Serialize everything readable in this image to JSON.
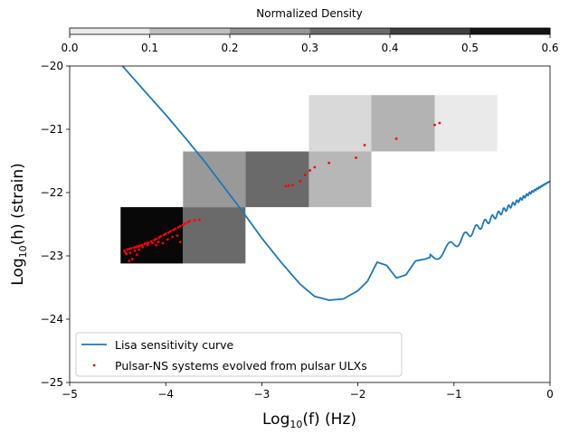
{
  "chart_data": {
    "type": "heatmap",
    "xlabel": "Log10(f) (Hz)",
    "ylabel": "Log10(h) (strain)",
    "xlim": [
      -5,
      0
    ],
    "ylim": [
      -25,
      -20
    ],
    "xticks": [
      -5,
      -4,
      -3,
      -2,
      -1,
      0
    ],
    "xtick_labels": [
      "−5",
      "−4",
      "−3",
      "−2",
      "−1",
      "0"
    ],
    "yticks": [
      -25,
      -24,
      -23,
      -22,
      -21,
      -20
    ],
    "ytick_labels": [
      "−25",
      "−24",
      "−23",
      "−22",
      "−21",
      "−20"
    ],
    "colorbar": {
      "title": "Normalized Density",
      "range": [
        0,
        0.6
      ],
      "ticks": [
        0,
        0.1,
        0.2,
        0.3,
        0.4,
        0.5,
        0.6
      ],
      "tick_labels": [
        "0.0",
        "0.1",
        "0.2",
        "0.3",
        "0.4",
        "0.5",
        "0.6"
      ]
    },
    "heatmap_cells": [
      {
        "x0": -4.47,
        "x1": -3.82,
        "y0": -23.12,
        "y1": -22.23,
        "density": 0.58
      },
      {
        "x0": -3.82,
        "x1": -3.17,
        "y0": -23.12,
        "y1": -22.23,
        "density": 0.35
      },
      {
        "x0": -3.82,
        "x1": -3.17,
        "y0": -22.23,
        "y1": -21.35,
        "density": 0.24
      },
      {
        "x0": -3.17,
        "x1": -2.51,
        "y0": -22.23,
        "y1": -21.35,
        "density": 0.35
      },
      {
        "x0": -2.51,
        "x1": -1.86,
        "y0": -22.23,
        "y1": -21.35,
        "density": 0.17
      },
      {
        "x0": -2.51,
        "x1": -1.86,
        "y0": -21.35,
        "y1": -20.46,
        "density": 0.09
      },
      {
        "x0": -1.86,
        "x1": -1.2,
        "y0": -21.35,
        "y1": -20.46,
        "density": 0.18
      },
      {
        "x0": -1.2,
        "x1": -0.55,
        "y0": -21.35,
        "y1": -20.46,
        "density": 0.05
      }
    ],
    "series": [
      {
        "name": "Lisa sensitivity curve",
        "type": "line",
        "color": "#1f77b4",
        "x": [
          -4.45,
          -4.2,
          -4.0,
          -3.8,
          -3.6,
          -3.4,
          -3.2,
          -3.0,
          -2.8,
          -2.6,
          -2.45,
          -2.3,
          -2.15,
          -2.0,
          -1.9,
          -1.8,
          -1.7,
          -1.6,
          -1.5,
          -1.4,
          -1.3,
          -1.2,
          -1.0,
          -0.8,
          -0.6,
          -0.4,
          -0.2,
          0.0
        ],
        "y": [
          -20.0,
          -20.43,
          -20.77,
          -21.13,
          -21.5,
          -21.9,
          -22.3,
          -22.72,
          -23.1,
          -23.45,
          -23.64,
          -23.7,
          -23.68,
          -23.55,
          -23.4,
          -23.1,
          -23.15,
          -23.35,
          -23.3,
          -23.08,
          -23.05,
          -23.0,
          -22.82,
          -22.6,
          -22.4,
          -22.2,
          -22.0,
          -21.82
        ]
      },
      {
        "name": "Pulsar-NS systems evolved from pulsar ULXs",
        "type": "scatter",
        "color": "#ff0000",
        "x": [
          -4.43,
          -4.4,
          -4.38,
          -4.36,
          -4.33,
          -4.31,
          -4.29,
          -4.27,
          -4.25,
          -4.22,
          -4.2,
          -4.18,
          -4.15,
          -4.12,
          -4.1,
          -4.07,
          -4.05,
          -4.02,
          -4.0,
          -3.97,
          -3.95,
          -3.92,
          -3.9,
          -3.87,
          -3.85,
          -3.82,
          -3.8,
          -3.77,
          -3.75,
          -3.7,
          -3.65,
          -4.41,
          -4.37,
          -4.32,
          -4.28,
          -4.24,
          -4.19,
          -4.14,
          -4.08,
          -4.03,
          -3.98,
          -3.93,
          -3.88,
          -4.35,
          -4.3,
          -4.1,
          -3.85,
          -2.75,
          -2.72,
          -2.68,
          -2.6,
          -2.55,
          -2.5,
          -2.45,
          -2.3,
          -2.02,
          -1.93,
          -1.6,
          -1.2,
          -1.15,
          -4.38,
          -4.42
        ],
        "y": [
          -22.92,
          -22.9,
          -22.89,
          -22.88,
          -22.87,
          -22.86,
          -22.85,
          -22.84,
          -22.83,
          -22.81,
          -22.8,
          -22.79,
          -22.77,
          -22.75,
          -22.73,
          -22.71,
          -22.69,
          -22.67,
          -22.65,
          -22.63,
          -22.61,
          -22.59,
          -22.57,
          -22.55,
          -22.53,
          -22.51,
          -22.49,
          -22.47,
          -22.45,
          -22.44,
          -22.43,
          -22.97,
          -22.95,
          -22.92,
          -22.9,
          -22.86,
          -22.83,
          -22.8,
          -22.78,
          -22.8,
          -22.74,
          -22.7,
          -22.68,
          -23.05,
          -22.98,
          -22.83,
          -22.78,
          -21.9,
          -21.89,
          -21.88,
          -21.82,
          -21.72,
          -21.65,
          -21.6,
          -21.53,
          -21.45,
          -21.25,
          -21.15,
          -20.93,
          -20.9,
          -23.08,
          -22.95
        ]
      }
    ],
    "legend": {
      "position": "lower-left",
      "entries": [
        "Lisa sensitivity curve",
        "Pulsar-NS systems evolved from pulsar ULXs"
      ]
    },
    "grid": false
  }
}
